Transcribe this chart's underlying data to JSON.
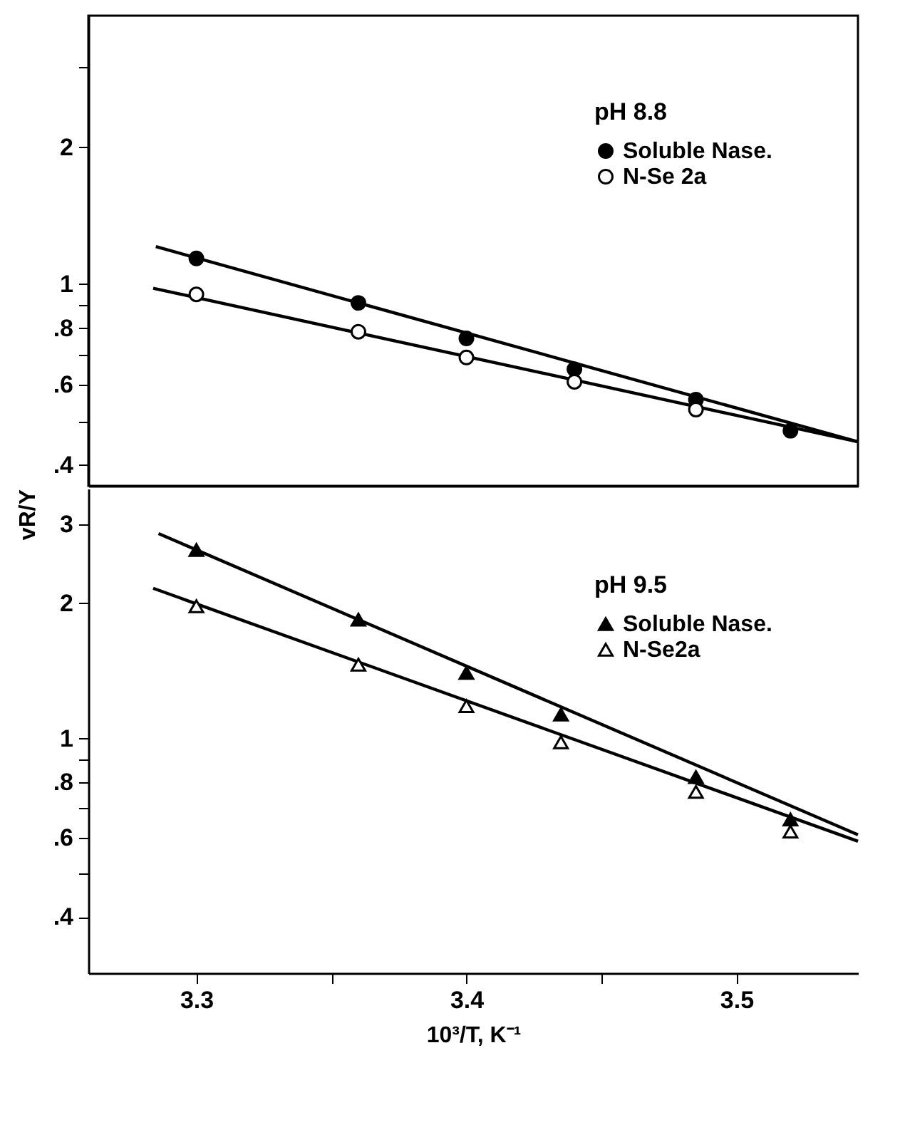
{
  "chart_data": [
    {
      "type": "scatter",
      "legend_title": "pH 8.8",
      "legend": "top right",
      "log": "y",
      "tick_labels": "y",
      "xlim": [
        3.26,
        3.545
      ],
      "ylim": [
        0.36,
        3.9
      ],
      "yticks": [
        {
          "value": 3,
          "label": null
        },
        2,
        1,
        {
          "value": 0.9,
          "label": null
        },
        {
          "value": 0.8,
          "label": ".8"
        },
        {
          "value": 0.7,
          "label": null
        },
        {
          "value": 0.6,
          "label": ".6"
        },
        {
          "value": 0.5,
          "label": null
        },
        {
          "value": 0.4,
          "label": ".4"
        }
      ],
      "series": [
        {
          "name": "Soluble Nase.",
          "type": "scatter",
          "marker": "circle",
          "color": "#000000",
          "x": [
            3.3,
            3.36,
            3.4,
            3.44,
            3.485,
            3.52
          ],
          "values": [
            1.14,
            0.91,
            0.76,
            0.65,
            0.557,
            0.476
          ]
        },
        {
          "name": "N-Se 2a",
          "type": "scatter",
          "marker": "circle",
          "color": "#ffffff",
          "x": [
            3.3,
            3.36,
            3.4,
            3.44,
            3.485
          ],
          "values": [
            0.95,
            0.786,
            0.69,
            0.61,
            0.53
          ]
        },
        {
          "type": "line",
          "marker": "none",
          "line_style": "solid",
          "color": "#000000",
          "x": [
            3.285,
            3.545
          ],
          "values": [
            1.21,
            0.45
          ]
        },
        {
          "type": "line",
          "marker": "none",
          "line_style": "solid",
          "color": "#000000",
          "x": [
            3.284,
            3.545
          ],
          "values": [
            0.98,
            0.45
          ]
        }
      ]
    },
    {
      "type": "scatter",
      "legend_title": "pH 9.5",
      "legend": "top right",
      "log": "y",
      "xlabel": "10³/T, K⁻¹",
      "ylabel": "vR/Y",
      "xlim": [
        3.26,
        3.545
      ],
      "ylim": [
        0.3,
        3.6
      ],
      "xticks": [
        3.3,
        {
          "value": 3.35,
          "label": null
        },
        3.4,
        {
          "value": 3.45,
          "label": null
        },
        3.5
      ],
      "yticks": [
        3,
        2,
        1,
        {
          "value": 0.9,
          "label": null
        },
        {
          "value": 0.8,
          "label": ".8"
        },
        {
          "value": 0.7,
          "label": null
        },
        {
          "value": 0.6,
          "label": ".6"
        },
        {
          "value": 0.5,
          "label": null
        },
        {
          "value": 0.4,
          "label": ".4"
        }
      ],
      "series": [
        {
          "name": "Soluble Nase.",
          "type": "scatter",
          "marker": "triangle",
          "color": "#000000",
          "x": [
            3.3,
            3.36,
            3.4,
            3.435,
            3.485,
            3.52
          ],
          "values": [
            2.63,
            1.84,
            1.4,
            1.13,
            0.82,
            0.66
          ]
        },
        {
          "name": "N-Se2a",
          "type": "scatter",
          "marker": "triangle",
          "color": "#ffffff",
          "x": [
            3.3,
            3.36,
            3.4,
            3.435,
            3.485,
            3.52
          ],
          "values": [
            1.97,
            1.46,
            1.18,
            0.98,
            0.76,
            0.62
          ]
        },
        {
          "type": "line",
          "marker": "none",
          "line_style": "solid",
          "color": "#000000",
          "x": [
            3.286,
            3.545
          ],
          "values": [
            2.86,
            0.61
          ]
        },
        {
          "type": "line",
          "marker": "none",
          "line_style": "solid",
          "color": "#000000",
          "x": [
            3.284,
            3.545
          ],
          "values": [
            2.16,
            0.59
          ]
        }
      ]
    }
  ]
}
